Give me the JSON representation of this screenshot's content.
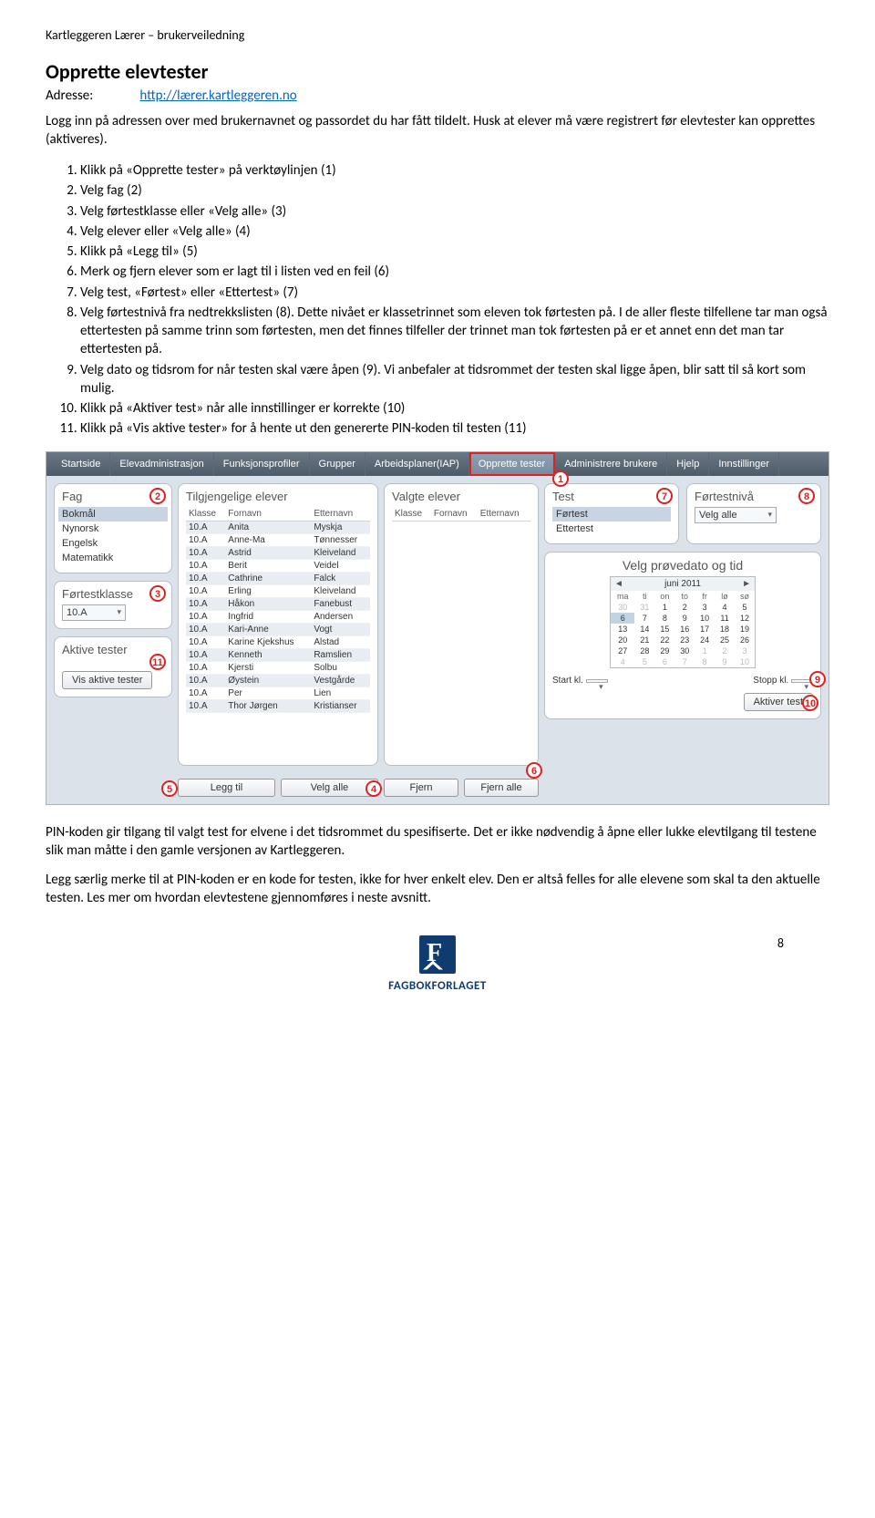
{
  "doc": {
    "header": "Kartleggeren Lærer – brukerveiledning",
    "title": "Opprette elevtester",
    "address_label": "Adresse:",
    "address_url": "http://lærer.kartleggeren.no",
    "intro": "Logg inn på adressen over med brukernavnet og passordet du har fått tildelt. Husk at elever må være registrert før elevtester kan opprettes (aktiveres).",
    "steps": [
      "Klikk på «Opprette tester» på verktøylinjen (1)",
      "Velg fag (2)",
      "Velg førtestklasse eller «Velg alle» (3)",
      "Velg elever eller «Velg alle» (4)",
      "Klikk på «Legg til» (5)",
      "Merk og fjern elever som er lagt til i listen ved en feil (6)",
      "Velg test, «Førtest» eller «Ettertest» (7)",
      "Velg førtestnivå fra nedtrekkslisten (8). Dette nivået er klassetrinnet som eleven tok førtesten på. I de aller fleste tilfellene tar man også ettertesten på samme trinn som førtesten, men det finnes tilfeller der trinnet man tok førtesten på er et annet enn det man tar ettertesten på.",
      "Velg dato og tidsrom for når testen skal være åpen (9). Vi anbefaler at tidsrommet der testen skal ligge åpen, blir satt til så kort som mulig.",
      "Klikk på «Aktiver test» når alle innstillinger er korrekte (10)",
      "Klikk på «Vis aktive tester» for å hente ut den genererte PIN-koden til testen (11)"
    ],
    "para2": "PIN-koden gir tilgang til valgt test for elvene i det tidsrommet du spesifiserte. Det er ikke nødvendig å åpne eller lukke elevtilgang til testene slik man måtte i den gamle versjonen av Kartleggeren.",
    "para3": "Legg særlig merke til at PIN-koden er en kode for testen, ikke for hver enkelt elev. Den er altså felles for alle elevene som skal ta den aktuelle testen. Les mer om hvordan elevtestene gjennomføres i neste avsnitt.",
    "logo_text": "FAGBOKFORLAGET",
    "page_number": "8"
  },
  "app": {
    "menu": [
      "Startside",
      "Elevadministrasjon",
      "Funksjonsprofiler",
      "Grupper",
      "Arbeidsplaner(IAP)",
      "Opprette tester",
      "Administrere brukere",
      "Hjelp",
      "Innstillinger"
    ],
    "fag": {
      "title": "Fag",
      "items": [
        "Bokmål",
        "Nynorsk",
        "Engelsk",
        "Matematikk"
      ],
      "selected": "Bokmål"
    },
    "fortestklasse": {
      "title": "Førtestklasse",
      "value": "10.A"
    },
    "aktive_tester": {
      "title": "Aktive tester",
      "button": "Vis aktive tester"
    },
    "avail": {
      "title": "Tilgjengelige elever",
      "headers": [
        "Klasse",
        "Fornavn",
        "Etternavn"
      ],
      "rows": [
        [
          "10.A",
          "Anita",
          "Myskja"
        ],
        [
          "10.A",
          "Anne-Ma",
          "Tønnesser"
        ],
        [
          "10.A",
          "Astrid",
          "Kleiveland"
        ],
        [
          "10.A",
          "Berit",
          "Veidel"
        ],
        [
          "10.A",
          "Cathrine",
          "Falck"
        ],
        [
          "10.A",
          "Erling",
          "Kleiveland"
        ],
        [
          "10.A",
          "Håkon",
          "Fanebust"
        ],
        [
          "10.A",
          "Ingfrid",
          "Andersen"
        ],
        [
          "10.A",
          "Kari-Anne",
          "Vogt"
        ],
        [
          "10.A",
          "Karine Kjekshus",
          "Alstad"
        ],
        [
          "10.A",
          "Kenneth",
          "Ramslien"
        ],
        [
          "10.A",
          "Kjersti",
          "Solbu"
        ],
        [
          "10.A",
          "Øystein",
          "Vestgårde"
        ],
        [
          "10.A",
          "Per",
          "Lien"
        ],
        [
          "10.A",
          "Thor Jørgen",
          "Kristianser"
        ]
      ],
      "btn_add": "Legg til",
      "btn_all": "Velg alle"
    },
    "selected": {
      "title": "Valgte elever",
      "headers": [
        "Klasse",
        "Fornavn",
        "Etternavn"
      ],
      "btn_remove": "Fjern",
      "btn_remove_all": "Fjern alle"
    },
    "test": {
      "title": "Test",
      "items": [
        "Førtest",
        "Ettertest"
      ],
      "selected": "Førtest"
    },
    "niveau": {
      "title": "Førtestnivå",
      "value": "Velg alle"
    },
    "date": {
      "title": "Velg prøvedato og tid",
      "month": "juni 2011",
      "weekdays": [
        "ma",
        "ti",
        "on",
        "to",
        "fr",
        "lø",
        "sø"
      ],
      "weeks": [
        [
          {
            "d": 30,
            "out": true
          },
          {
            "d": 31,
            "out": true
          },
          {
            "d": 1
          },
          {
            "d": 2
          },
          {
            "d": 3
          },
          {
            "d": 4
          },
          {
            "d": 5
          }
        ],
        [
          {
            "d": 6,
            "sel": true
          },
          {
            "d": 7
          },
          {
            "d": 8
          },
          {
            "d": 9
          },
          {
            "d": 10
          },
          {
            "d": 11
          },
          {
            "d": 12
          }
        ],
        [
          {
            "d": 13
          },
          {
            "d": 14
          },
          {
            "d": 15
          },
          {
            "d": 16
          },
          {
            "d": 17
          },
          {
            "d": 18
          },
          {
            "d": 19
          }
        ],
        [
          {
            "d": 20
          },
          {
            "d": 21
          },
          {
            "d": 22
          },
          {
            "d": 23
          },
          {
            "d": 24
          },
          {
            "d": 25
          },
          {
            "d": 26
          }
        ],
        [
          {
            "d": 27
          },
          {
            "d": 28
          },
          {
            "d": 29
          },
          {
            "d": 30
          },
          {
            "d": 1,
            "out": true
          },
          {
            "d": 2,
            "out": true
          },
          {
            "d": 3,
            "out": true
          }
        ],
        [
          {
            "d": 4,
            "out": true
          },
          {
            "d": 5,
            "out": true
          },
          {
            "d": 6,
            "out": true
          },
          {
            "d": 7,
            "out": true
          },
          {
            "d": 8,
            "out": true
          },
          {
            "d": 9,
            "out": true
          },
          {
            "d": 10,
            "out": true
          }
        ]
      ],
      "start_label": "Start kl.",
      "stop_label": "Stopp kl.",
      "btn_activate": "Aktiver test"
    }
  }
}
